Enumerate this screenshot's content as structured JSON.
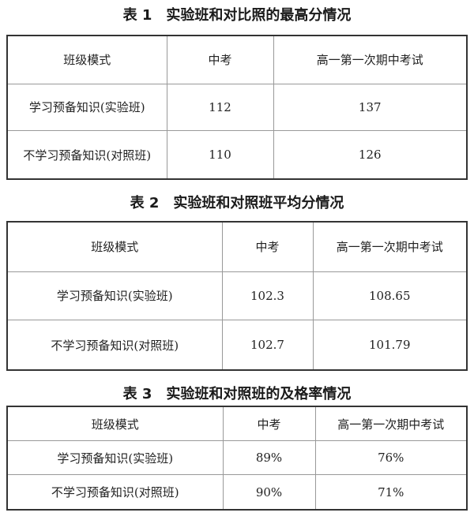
{
  "tables": [
    {
      "title": "表 1　实验班和对比照的最高分情况",
      "headers": [
        "班级模式",
        "中考",
        "高一第一次期中考试"
      ],
      "rows": [
        [
          "学习预备知识(实验班)",
          "112",
          "137"
        ],
        [
          "不学习预备知识(对照班)",
          "110",
          "126"
        ]
      ]
    },
    {
      "title": "表 2　实验班和对照班平均分情况",
      "headers": [
        "班级模式",
        "中考",
        "高一第一次期中考试"
      ],
      "rows": [
        [
          "学习预备知识(实验班)",
          "102.3",
          "108.65"
        ],
        [
          "不学习预备知识(对照班)",
          "102.7",
          "101.79"
        ]
      ]
    },
    {
      "title": "表 3　实验班和对照班的及格率情况",
      "headers": [
        "班级模式",
        "中考",
        "高一第一次期中考试"
      ],
      "rows": [
        [
          "学习预备知识(实验班)",
          "89%",
          "76%"
        ],
        [
          "不学习预备知识(对照班)",
          "90%",
          "71%"
        ]
      ]
    }
  ]
}
